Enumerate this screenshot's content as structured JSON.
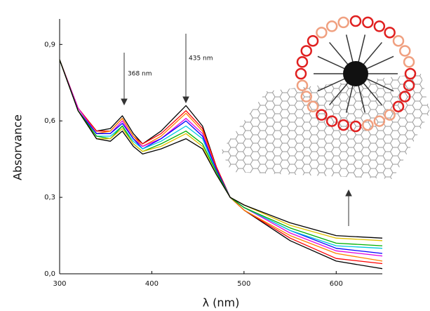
{
  "chart_data": {
    "type": "line",
    "x_label": "λ (nm)",
    "y_label": "Absorvance",
    "annotations": [
      {
        "text": "368 nm"
      },
      {
        "text": "435 nm"
      }
    ],
    "x": [
      300,
      320,
      340,
      355,
      368,
      380,
      390,
      410,
      437,
      455,
      470,
      485,
      500,
      550,
      600,
      650
    ],
    "series": [
      {
        "color": "#000000",
        "values": [
          0.84,
          0.65,
          0.56,
          0.57,
          0.62,
          0.55,
          0.51,
          0.56,
          0.66,
          0.58,
          0.42,
          0.3,
          0.25,
          0.13,
          0.05,
          0.02
        ]
      },
      {
        "color": "#ff0000",
        "values": [
          0.84,
          0.65,
          0.56,
          0.56,
          0.61,
          0.54,
          0.51,
          0.55,
          0.64,
          0.57,
          0.42,
          0.3,
          0.25,
          0.14,
          0.06,
          0.04
        ]
      },
      {
        "color": "#ff8000",
        "values": [
          0.84,
          0.65,
          0.55,
          0.56,
          0.61,
          0.54,
          0.5,
          0.54,
          0.63,
          0.56,
          0.41,
          0.3,
          0.25,
          0.15,
          0.08,
          0.05
        ]
      },
      {
        "color": "#e000e0",
        "values": [
          0.84,
          0.65,
          0.55,
          0.55,
          0.6,
          0.53,
          0.5,
          0.53,
          0.61,
          0.55,
          0.41,
          0.3,
          0.26,
          0.16,
          0.09,
          0.07
        ]
      },
      {
        "color": "#0000ff",
        "values": [
          0.84,
          0.64,
          0.55,
          0.55,
          0.59,
          0.53,
          0.49,
          0.53,
          0.6,
          0.54,
          0.41,
          0.3,
          0.26,
          0.17,
          0.1,
          0.08
        ]
      },
      {
        "color": "#00c8e0",
        "values": [
          0.84,
          0.64,
          0.54,
          0.54,
          0.58,
          0.52,
          0.49,
          0.52,
          0.58,
          0.53,
          0.4,
          0.3,
          0.26,
          0.17,
          0.11,
          0.1
        ]
      },
      {
        "color": "#00b000",
        "values": [
          0.84,
          0.64,
          0.54,
          0.53,
          0.58,
          0.51,
          0.48,
          0.51,
          0.56,
          0.51,
          0.4,
          0.3,
          0.26,
          0.18,
          0.12,
          0.11
        ]
      },
      {
        "color": "#e0c000",
        "values": [
          0.84,
          0.64,
          0.53,
          0.53,
          0.57,
          0.51,
          0.48,
          0.5,
          0.55,
          0.5,
          0.39,
          0.3,
          0.27,
          0.19,
          0.14,
          0.13
        ]
      },
      {
        "color": "#000000",
        "values": [
          0.84,
          0.64,
          0.53,
          0.52,
          0.56,
          0.5,
          0.47,
          0.49,
          0.53,
          0.49,
          0.39,
          0.3,
          0.27,
          0.2,
          0.15,
          0.14
        ]
      }
    ],
    "xlim": [
      300,
      650
    ],
    "ylim": [
      0,
      1
    ],
    "xticks": [
      300,
      400,
      500,
      600
    ],
    "yticks": [
      {
        "value": 0,
        "label": "0,0"
      },
      {
        "value": 0.3,
        "label": "0,3"
      },
      {
        "value": 0.6,
        "label": "0,6"
      },
      {
        "value": 0.9,
        "label": "0,9"
      }
    ]
  }
}
